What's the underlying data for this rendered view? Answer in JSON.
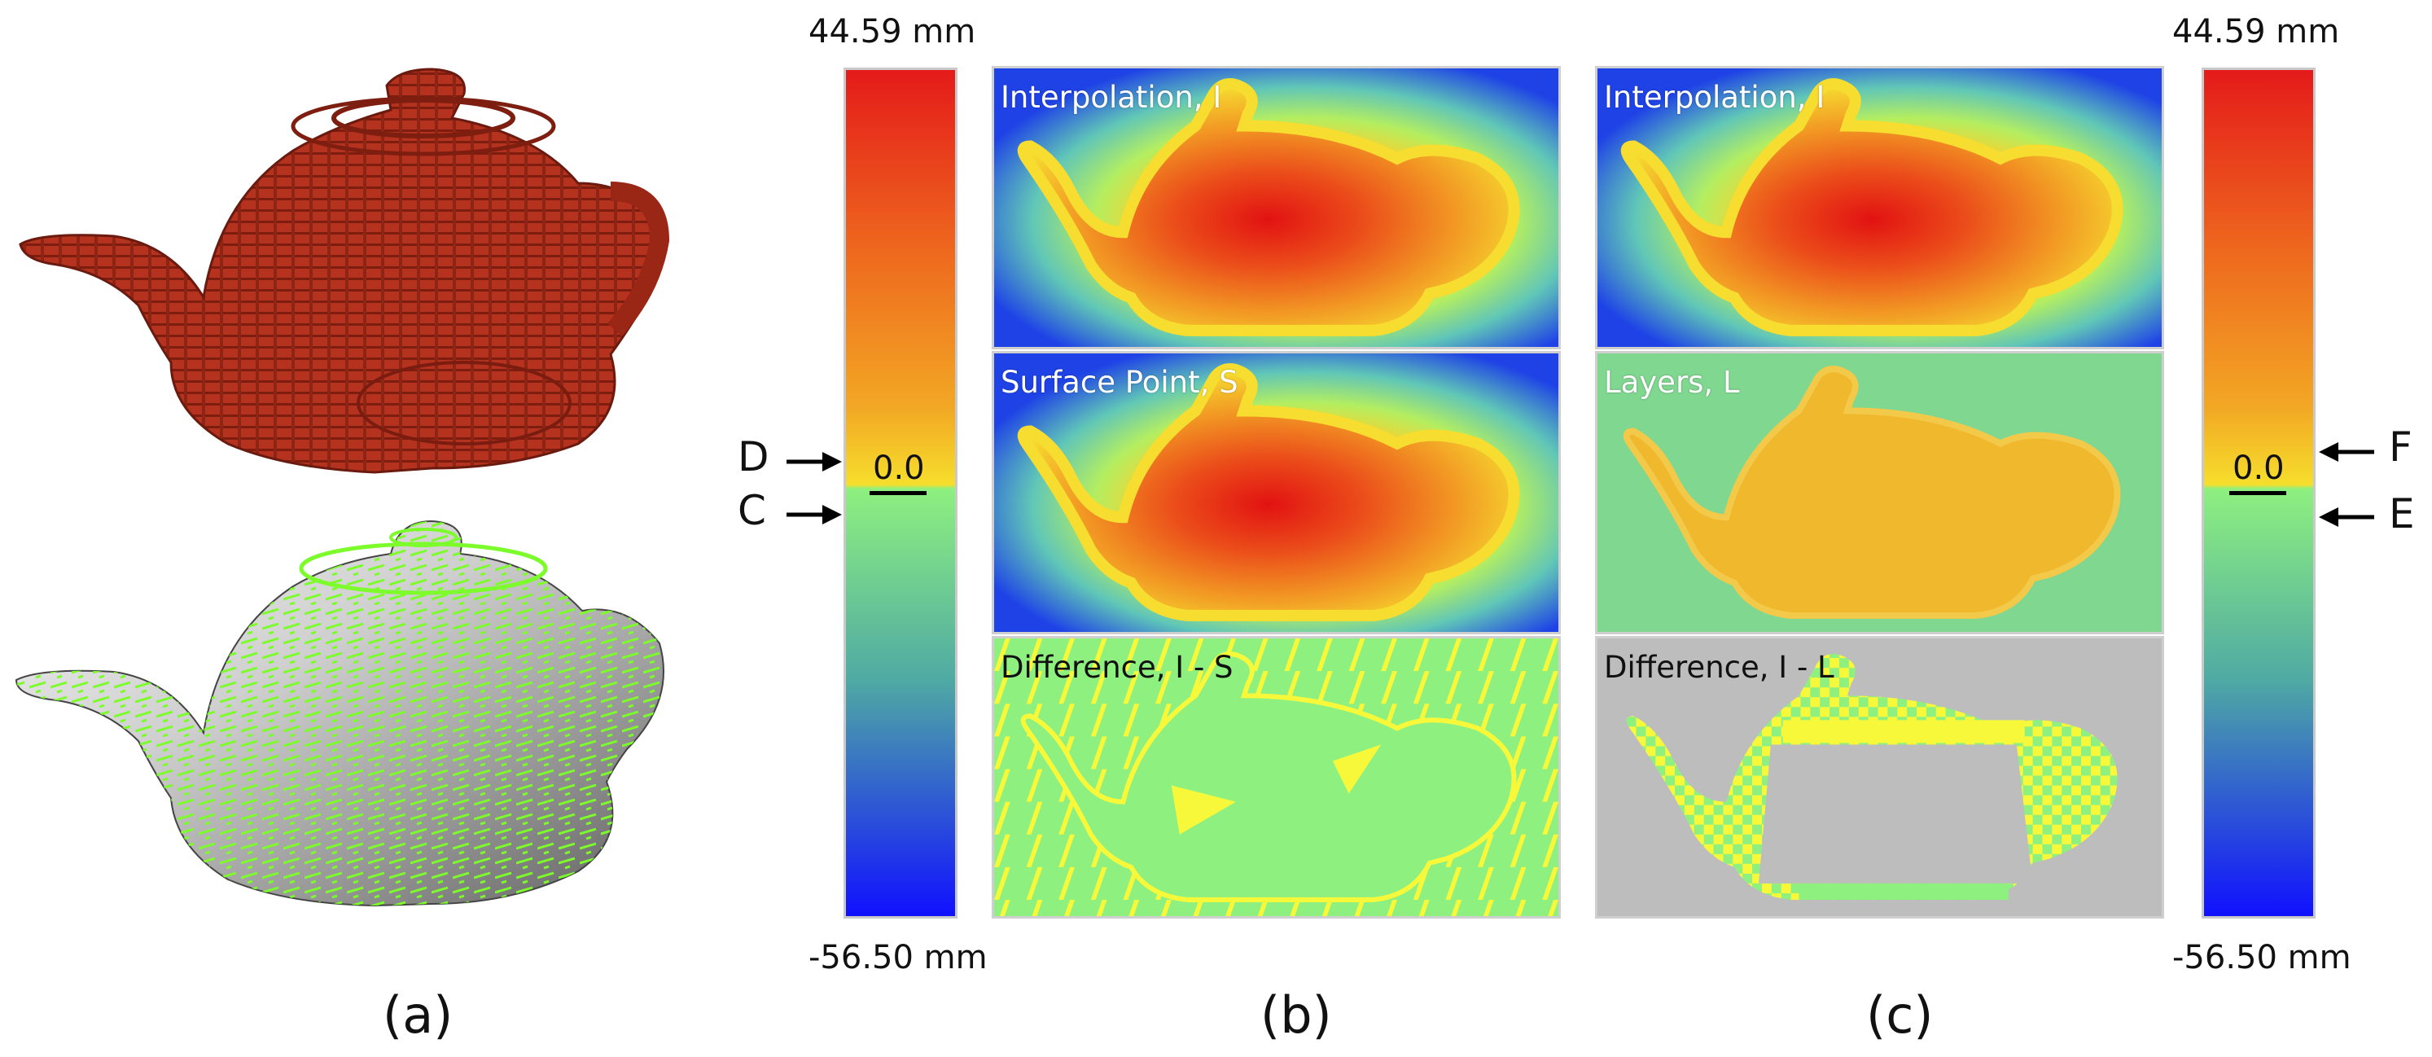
{
  "colorbar": {
    "max_label": "44.59 mm",
    "min_label": "-56.50 mm",
    "zero_label": "0.0",
    "max_value": 44.59,
    "min_value": -56.5
  },
  "markers": {
    "left": [
      "D",
      "C"
    ],
    "right": [
      "F",
      "E"
    ]
  },
  "panels_b": [
    {
      "label": "Interpolation, I"
    },
    {
      "label": "Surface Point, S"
    },
    {
      "label": "Difference, I - S"
    }
  ],
  "panels_c": [
    {
      "label": "Interpolation, I"
    },
    {
      "label": "Layers, L"
    },
    {
      "label": "Difference, I - L"
    }
  ],
  "captions": {
    "a": "(a)",
    "b": "(b)",
    "c": "(c)"
  },
  "colors": {
    "voxel_teapot": "#b3321f",
    "field_red": "#e01010",
    "field_yellow": "#f4e23a",
    "field_green": "#8ef07f",
    "field_blue": "#2a4fe0",
    "layer_orange": "#f0b82c",
    "layer_green": "#7fd790",
    "diff_yellow": "#f8f83a",
    "diff_gray": "#bdbdbd"
  }
}
